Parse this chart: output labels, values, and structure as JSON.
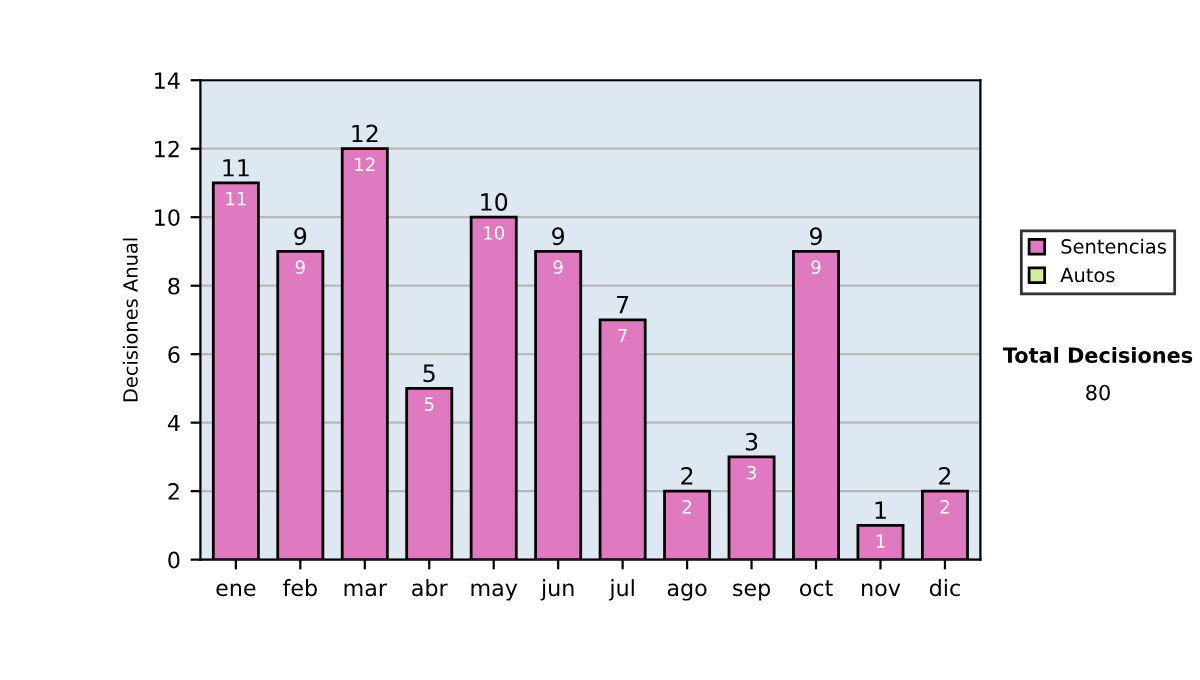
{
  "chart_data": {
    "type": "bar",
    "stacked": true,
    "ylabel": "Decisiones Anual",
    "categories": [
      "ene",
      "feb",
      "mar",
      "abr",
      "may",
      "jun",
      "jul",
      "ago",
      "sep",
      "oct",
      "nov",
      "dic"
    ],
    "series": [
      {
        "name": "Sentencias",
        "color": "#e07ac0",
        "values": [
          11,
          9,
          12,
          5,
          10,
          9,
          7,
          2,
          3,
          9,
          1,
          2
        ],
        "value_labels": [
          "11",
          "9",
          "12",
          "5",
          "10",
          "9",
          "7",
          "2",
          "3",
          "9",
          "1",
          "2"
        ]
      },
      {
        "name": "Autos",
        "color": "#d4eca0",
        "values": [
          null,
          null,
          null,
          null,
          null,
          null,
          null,
          null,
          null,
          null,
          null,
          null
        ]
      }
    ],
    "totals": [
      "11",
      "9",
      "12",
      "5",
      "10",
      "9",
      "7",
      "2",
      "3",
      "9",
      "1",
      "2"
    ],
    "ylim": [
      0,
      14
    ],
    "yticks": [
      0,
      2,
      4,
      6,
      8,
      10,
      12,
      14
    ],
    "grid": "y",
    "legend": "right",
    "annotations": [
      "Total Decisiones",
      "80"
    ]
  }
}
